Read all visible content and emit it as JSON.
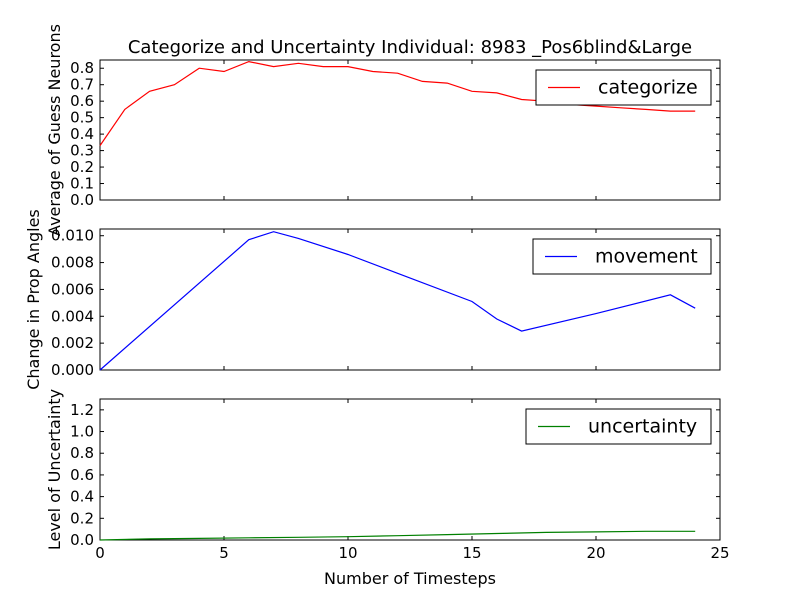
{
  "chart_data": {
    "type": "line",
    "title": "Categorize and Uncertainty Individual: 8983 _Pos6blind&Large",
    "xlabel": "Number of Timesteps",
    "x_ticks": [
      "0",
      "5",
      "10",
      "15",
      "20",
      "25"
    ],
    "xlim": [
      0,
      25
    ],
    "panels": [
      {
        "ylabel": "Average of Guess Neurons",
        "ylim": [
          0,
          0.85
        ],
        "y_ticks": [
          "0.0",
          "0.1",
          "0.2",
          "0.3",
          "0.4",
          "0.5",
          "0.6",
          "0.7",
          "0.8"
        ],
        "legend_position": "top-right",
        "series": [
          {
            "name": "categorize",
            "color": "#ff0000",
            "x": [
              0,
              1,
              2,
              3,
              4,
              5,
              6,
              7,
              8,
              9,
              10,
              11,
              12,
              13,
              14,
              15,
              16,
              17,
              18,
              19,
              20,
              21,
              22,
              23,
              24
            ],
            "y": [
              0.33,
              0.55,
              0.66,
              0.7,
              0.8,
              0.78,
              0.84,
              0.81,
              0.83,
              0.81,
              0.81,
              0.78,
              0.77,
              0.72,
              0.71,
              0.66,
              0.65,
              0.61,
              0.6,
              0.58,
              0.57,
              0.56,
              0.55,
              0.54,
              0.54
            ]
          }
        ]
      },
      {
        "ylabel": "Change in Prop Angles",
        "ylim": [
          0,
          0.0105
        ],
        "y_ticks": [
          "0.000",
          "0.002",
          "0.004",
          "0.006",
          "0.008",
          "0.010"
        ],
        "legend_position": "top-right",
        "series": [
          {
            "name": "movement",
            "color": "#0000ff",
            "x": [
              0,
              6,
              7,
              8,
              10,
              12,
              15,
              16,
              17,
              20,
              23,
              24
            ],
            "y": [
              0.0,
              0.0097,
              0.0103,
              0.0098,
              0.0086,
              0.0072,
              0.0051,
              0.0038,
              0.0029,
              0.0042,
              0.0056,
              0.0046
            ]
          }
        ]
      },
      {
        "ylabel": "Level of Uncertainty",
        "ylim": [
          0,
          1.3
        ],
        "y_ticks": [
          "0.0",
          "0.2",
          "0.4",
          "0.6",
          "0.8",
          "1.0",
          "1.2"
        ],
        "legend_position": "top-right",
        "series": [
          {
            "name": "uncertainty",
            "color": "#008000",
            "x": [
              0,
              2,
              4,
              6,
              8,
              10,
              12,
              14,
              16,
              18,
              20,
              22,
              24
            ],
            "y": [
              0.0,
              0.01,
              0.015,
              0.02,
              0.025,
              0.03,
              0.04,
              0.05,
              0.06,
              0.07,
              0.075,
              0.08,
              0.08
            ]
          }
        ]
      }
    ]
  }
}
